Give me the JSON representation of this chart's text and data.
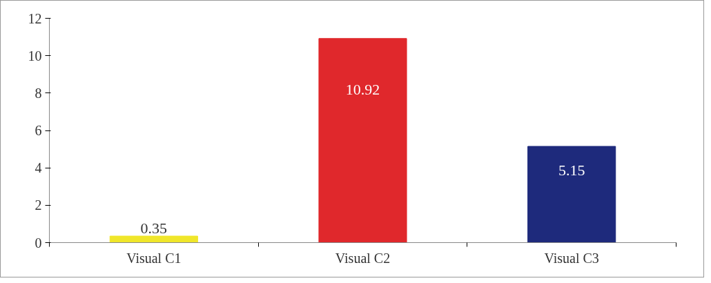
{
  "chart_data": {
    "type": "bar",
    "categories": [
      "Visual C1",
      "Visual C2",
      "Visual C3"
    ],
    "values": [
      0.35,
      10.92,
      5.15
    ],
    "colors": [
      "#f0e62a",
      "#e0282c",
      "#1e2a7c"
    ],
    "ylim": [
      0,
      12
    ],
    "yticks": [
      0,
      2,
      4,
      6,
      8,
      10,
      12
    ],
    "data_labels": true
  }
}
